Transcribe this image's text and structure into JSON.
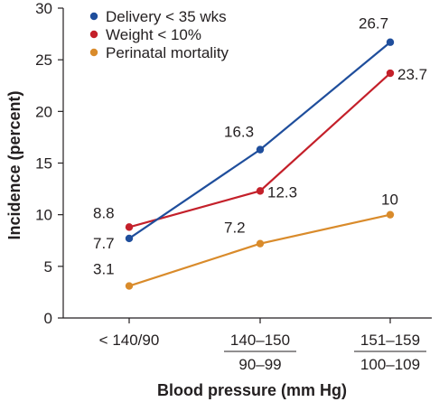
{
  "chart_data": {
    "type": "line",
    "title": "",
    "xlabel": "Blood pressure (mm Hg)",
    "ylabel": "Incidence (percent)",
    "ylim": [
      0,
      30
    ],
    "yticks": [
      "0",
      "5",
      "10",
      "15",
      "20",
      "25",
      "30"
    ],
    "categories": [
      {
        "line1": "< 140/90",
        "line2": ""
      },
      {
        "line1": "140–150",
        "line2": "90–99"
      },
      {
        "line1": "151–159",
        "line2": "100–109"
      }
    ],
    "legend_position": "top-left",
    "series": [
      {
        "name": "Delivery < 35 wks",
        "color": "#1f4e9c",
        "values": [
          7.7,
          16.3,
          26.7
        ],
        "labels": [
          "7.7",
          "16.3",
          "26.7"
        ]
      },
      {
        "name": "Weight < 10%",
        "color": "#c4202a",
        "values": [
          8.8,
          12.3,
          23.7
        ],
        "labels": [
          "8.8",
          "12.3",
          "23.7"
        ]
      },
      {
        "name": "Perinatal mortality",
        "color": "#d98b2b",
        "values": [
          3.1,
          7.2,
          10
        ],
        "labels": [
          "3.1",
          "7.2",
          "10"
        ]
      }
    ]
  }
}
